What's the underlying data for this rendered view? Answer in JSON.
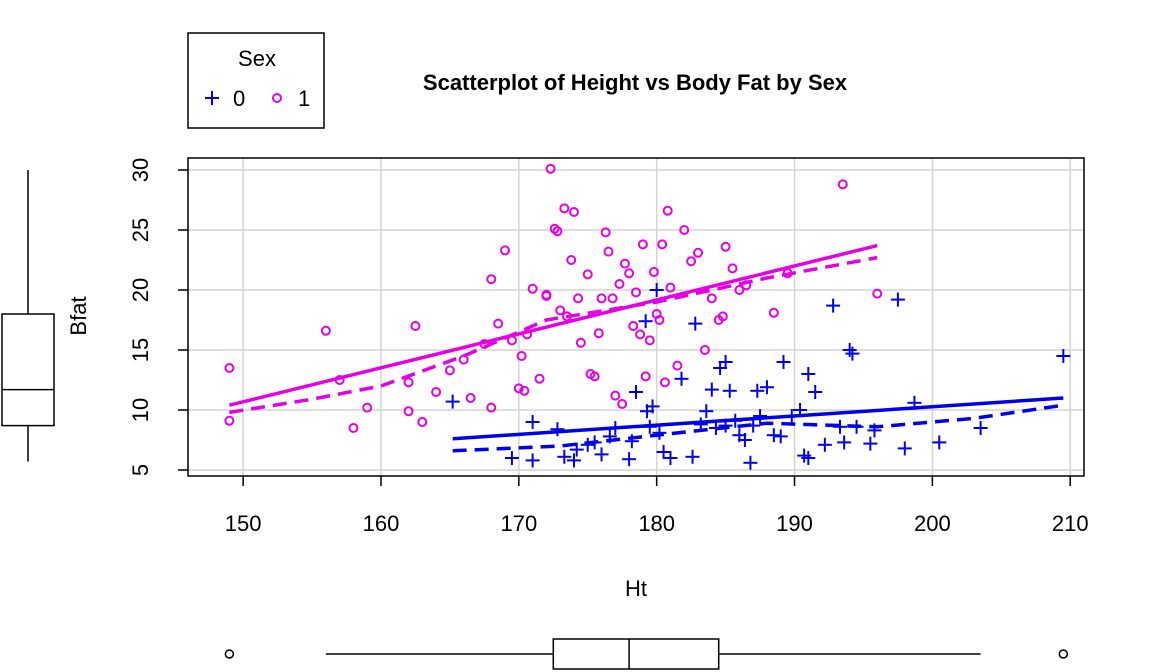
{
  "chart_data": {
    "type": "scatter",
    "title": "Scatterplot of Height vs Body Fat by Sex",
    "xlabel": "Ht",
    "ylabel": "Bfat",
    "xlim": [
      146,
      211
    ],
    "ylim": [
      4.5,
      31
    ],
    "xticks": [
      "150",
      "160",
      "170",
      "180",
      "190",
      "200",
      "210"
    ],
    "yticks": [
      "5",
      "10",
      "15",
      "20",
      "25",
      "30"
    ],
    "grid": true,
    "legend": {
      "title": "Sex",
      "placement": "top-left-outside",
      "entries": [
        "0",
        "1"
      ]
    },
    "colors": {
      "0": "#0000ee",
      "1": "#e600e6"
    },
    "series": [
      {
        "name": "0",
        "marker": "plus",
        "points": [
          [
            165.2,
            10.7
          ],
          [
            169.5,
            6.0
          ],
          [
            171.0,
            9.0
          ],
          [
            171.0,
            5.8
          ],
          [
            172.8,
            8.4
          ],
          [
            173.3,
            6.1
          ],
          [
            174.0,
            5.8
          ],
          [
            174.2,
            6.7
          ],
          [
            175.0,
            7.1
          ],
          [
            175.5,
            7.3
          ],
          [
            176.0,
            6.3
          ],
          [
            176.6,
            7.8
          ],
          [
            177.0,
            8.5
          ],
          [
            178.0,
            5.9
          ],
          [
            178.2,
            7.4
          ],
          [
            178.5,
            11.5
          ],
          [
            179.2,
            17.4
          ],
          [
            179.3,
            9.9
          ],
          [
            179.5,
            8.6
          ],
          [
            179.7,
            10.3
          ],
          [
            180.0,
            20.0
          ],
          [
            180.2,
            8.1
          ],
          [
            180.5,
            6.5
          ],
          [
            181.0,
            6.0
          ],
          [
            181.8,
            12.6
          ],
          [
            182.6,
            6.1
          ],
          [
            182.8,
            17.2
          ],
          [
            183.2,
            8.8
          ],
          [
            183.6,
            9.9
          ],
          [
            184.0,
            11.7
          ],
          [
            184.3,
            8.5
          ],
          [
            184.6,
            13.5
          ],
          [
            185.0,
            14.0
          ],
          [
            185.0,
            8.7
          ],
          [
            185.3,
            11.6
          ],
          [
            185.7,
            9.1
          ],
          [
            186.0,
            7.9
          ],
          [
            186.4,
            7.5
          ],
          [
            186.8,
            5.6
          ],
          [
            187.0,
            8.7
          ],
          [
            187.3,
            11.6
          ],
          [
            187.5,
            9.5
          ],
          [
            188.0,
            11.9
          ],
          [
            188.5,
            7.9
          ],
          [
            189.0,
            7.8
          ],
          [
            189.2,
            14.0
          ],
          [
            189.8,
            9.5
          ],
          [
            190.4,
            10.0
          ],
          [
            190.7,
            6.2
          ],
          [
            191.0,
            13.0
          ],
          [
            191.0,
            6.0
          ],
          [
            191.5,
            11.5
          ],
          [
            192.2,
            7.1
          ],
          [
            192.8,
            18.7
          ],
          [
            193.3,
            8.6
          ],
          [
            193.6,
            7.3
          ],
          [
            194.0,
            15.0
          ],
          [
            194.2,
            14.7
          ],
          [
            194.5,
            8.6
          ],
          [
            195.5,
            7.2
          ],
          [
            195.8,
            8.3
          ],
          [
            197.5,
            19.2
          ],
          [
            198.0,
            6.8
          ],
          [
            198.7,
            10.6
          ],
          [
            200.5,
            7.3
          ],
          [
            203.5,
            8.5
          ],
          [
            209.5,
            14.5
          ]
        ],
        "fit_solid": [
          [
            165.2,
            7.6
          ],
          [
            209.5,
            11.0
          ]
        ],
        "fit_dashed": [
          [
            165.2,
            6.6
          ],
          [
            173,
            7.0
          ],
          [
            180,
            7.9
          ],
          [
            188,
            8.9
          ],
          [
            196,
            8.6
          ],
          [
            203,
            9.3
          ],
          [
            209.5,
            10.4
          ]
        ]
      },
      {
        "name": "1",
        "marker": "circle",
        "points": [
          [
            149.0,
            13.5
          ],
          [
            149.0,
            9.1
          ],
          [
            156.0,
            16.6
          ],
          [
            157.0,
            12.5
          ],
          [
            158.0,
            8.5
          ],
          [
            159.0,
            10.2
          ],
          [
            162.0,
            12.3
          ],
          [
            162.0,
            9.9
          ],
          [
            162.5,
            17.0
          ],
          [
            163.0,
            9.0
          ],
          [
            164.0,
            11.5
          ],
          [
            165.0,
            13.3
          ],
          [
            166.0,
            14.2
          ],
          [
            166.5,
            11.0
          ],
          [
            167.5,
            15.5
          ],
          [
            168.0,
            20.9
          ],
          [
            168.0,
            10.2
          ],
          [
            168.5,
            17.2
          ],
          [
            169.0,
            23.3
          ],
          [
            169.5,
            15.8
          ],
          [
            170.0,
            11.8
          ],
          [
            170.2,
            14.5
          ],
          [
            170.4,
            11.6
          ],
          [
            170.6,
            16.3
          ],
          [
            171.0,
            20.1
          ],
          [
            171.5,
            12.6
          ],
          [
            172.0,
            19.6
          ],
          [
            172.0,
            19.5
          ],
          [
            172.3,
            30.1
          ],
          [
            172.6,
            25.1
          ],
          [
            172.8,
            24.9
          ],
          [
            173.0,
            18.3
          ],
          [
            173.3,
            26.8
          ],
          [
            173.5,
            17.8
          ],
          [
            173.8,
            22.5
          ],
          [
            174.0,
            26.5
          ],
          [
            174.3,
            19.3
          ],
          [
            174.5,
            15.6
          ],
          [
            175.0,
            21.3
          ],
          [
            175.2,
            13.0
          ],
          [
            175.5,
            12.8
          ],
          [
            175.8,
            16.4
          ],
          [
            176.0,
            19.3
          ],
          [
            176.3,
            24.8
          ],
          [
            176.5,
            23.2
          ],
          [
            176.8,
            19.3
          ],
          [
            177.0,
            11.2
          ],
          [
            177.3,
            20.5
          ],
          [
            177.5,
            10.5
          ],
          [
            177.7,
            22.2
          ],
          [
            178.0,
            21.4
          ],
          [
            178.3,
            17.0
          ],
          [
            178.5,
            19.8
          ],
          [
            178.8,
            16.3
          ],
          [
            179.0,
            23.8
          ],
          [
            179.2,
            12.8
          ],
          [
            179.5,
            15.8
          ],
          [
            179.8,
            21.5
          ],
          [
            180.0,
            18.0
          ],
          [
            180.2,
            17.5
          ],
          [
            180.4,
            23.8
          ],
          [
            180.6,
            12.3
          ],
          [
            180.8,
            26.6
          ],
          [
            181.0,
            20.2
          ],
          [
            181.5,
            13.7
          ],
          [
            182.0,
            25.0
          ],
          [
            182.5,
            22.4
          ],
          [
            183.0,
            23.1
          ],
          [
            183.5,
            15.0
          ],
          [
            184.0,
            19.3
          ],
          [
            184.5,
            17.5
          ],
          [
            184.8,
            17.8
          ],
          [
            185.0,
            23.6
          ],
          [
            185.5,
            21.8
          ],
          [
            186.0,
            20.0
          ],
          [
            186.5,
            20.4
          ],
          [
            188.5,
            18.1
          ],
          [
            189.5,
            21.4
          ],
          [
            193.5,
            28.8
          ],
          [
            196.0,
            19.7
          ]
        ],
        "fit_solid": [
          [
            149,
            10.4
          ],
          [
            196,
            23.7
          ]
        ],
        "fit_dashed": [
          [
            149,
            9.8
          ],
          [
            155,
            10.9
          ],
          [
            160,
            12.0
          ],
          [
            166,
            14.5
          ],
          [
            172,
            17.5
          ],
          [
            180,
            19.0
          ],
          [
            188,
            21.0
          ],
          [
            196,
            22.7
          ]
        ]
      }
    ],
    "marginal_boxplots": {
      "y": {
        "whisker_low": 5.7,
        "q1": 8.7,
        "median": 11.7,
        "q3": 18.0,
        "whisker_high": 30.0
      },
      "x": {
        "whisker_low": 156,
        "q1": 172.5,
        "median": 178.0,
        "q3": 184.5,
        "whisker_high": 203.5,
        "outliers": [
          149,
          209.5
        ]
      }
    }
  }
}
